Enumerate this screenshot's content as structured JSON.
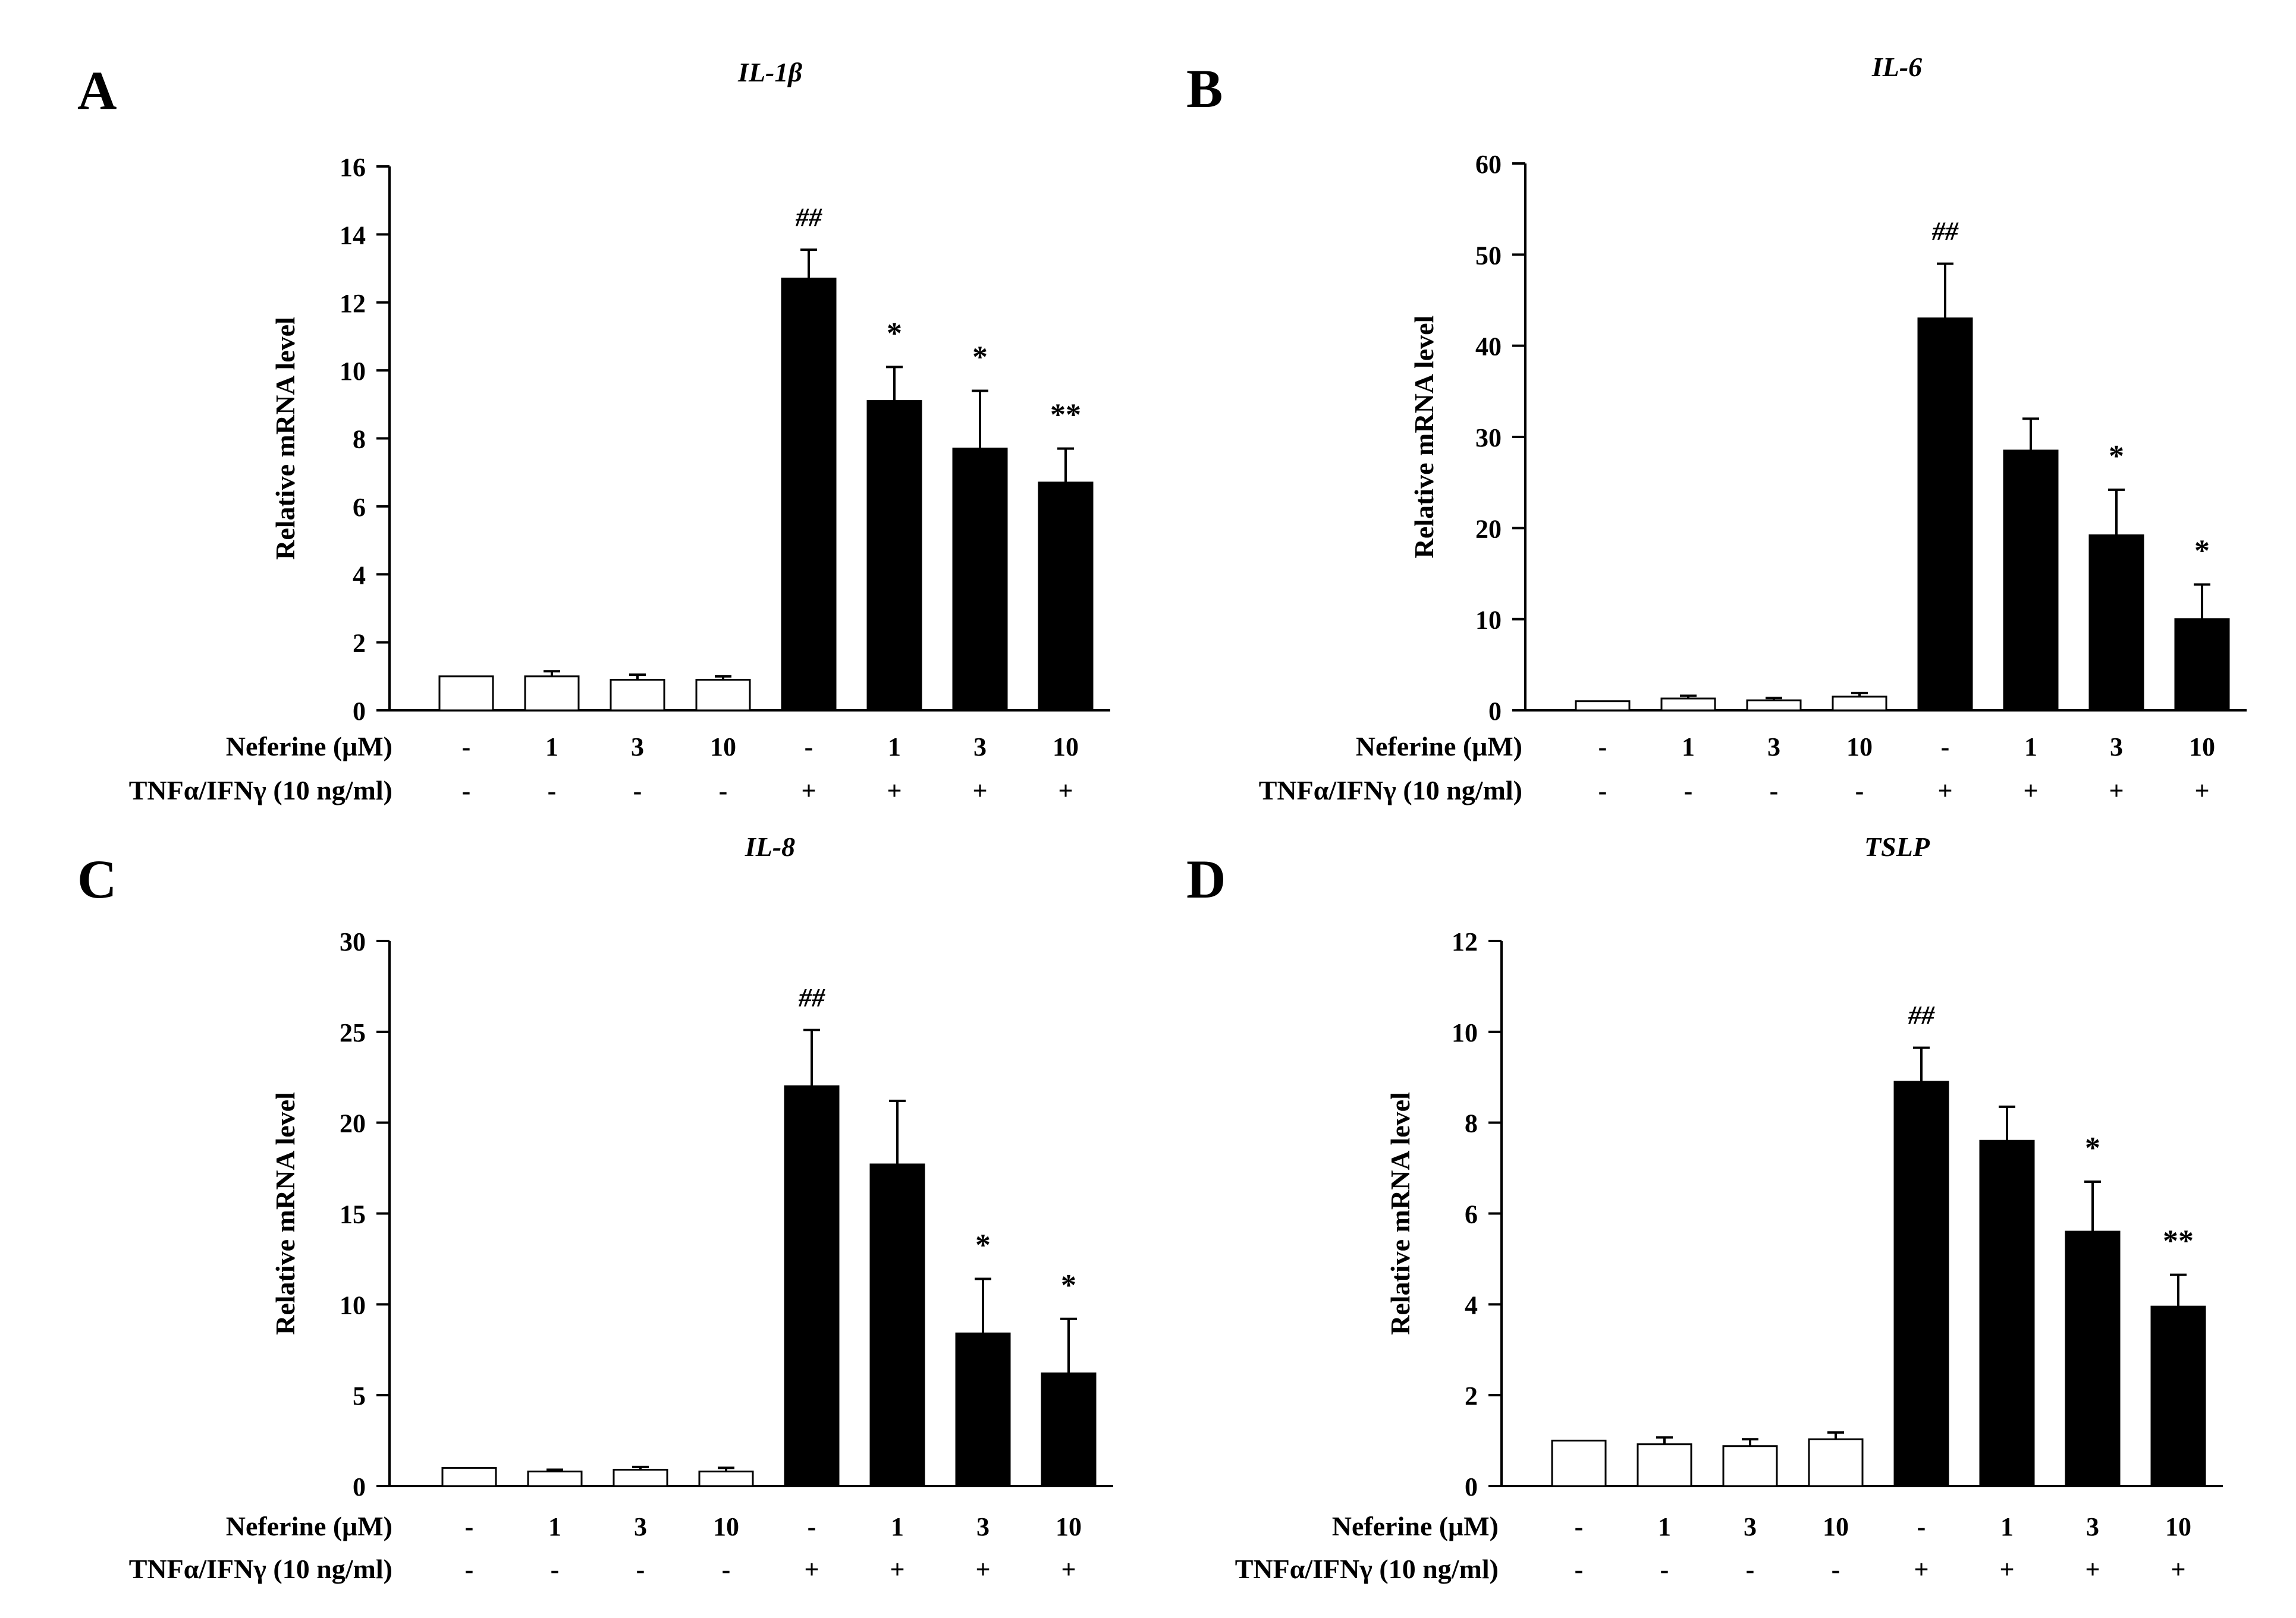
{
  "figure": {
    "x_rows": {
      "neferine_label": "Neferine (μM)",
      "neferine_values": [
        "-",
        "1",
        "3",
        "10",
        "-",
        "1",
        "3",
        "10"
      ],
      "tnf_label": "TNFα/IFNγ (10 ng/ml)",
      "tnf_values": [
        "-",
        "-",
        "-",
        "-",
        "+",
        "+",
        "+",
        "+"
      ]
    },
    "colors": {
      "control_bar": "#ffffff",
      "treated_bar": "#000000",
      "axis": "#000000"
    }
  },
  "chart_data": [
    {
      "panel": "A",
      "type": "bar",
      "title": "IL-1β",
      "ylabel": "Relative mRNA level",
      "ylim": [
        0,
        16
      ],
      "yticks": [
        0,
        2,
        4,
        6,
        8,
        10,
        12,
        14,
        16
      ],
      "values": [
        1.0,
        1.0,
        0.9,
        0.9,
        12.7,
        9.1,
        7.7,
        6.7
      ],
      "errors": [
        0.0,
        0.15,
        0.15,
        0.1,
        0.85,
        1.0,
        1.7,
        1.0
      ],
      "annotations": [
        "",
        "",
        "",
        "",
        "##",
        "*",
        "*",
        "**"
      ]
    },
    {
      "panel": "B",
      "type": "bar",
      "title": "IL-6",
      "ylabel": "Relative mRNA level",
      "ylim": [
        0,
        60
      ],
      "yticks": [
        0,
        10,
        20,
        30,
        40,
        50,
        60
      ],
      "values": [
        1.0,
        1.3,
        1.1,
        1.5,
        43.0,
        28.5,
        19.2,
        10.0
      ],
      "errors": [
        0.0,
        0.3,
        0.25,
        0.4,
        6.0,
        3.5,
        5.0,
        3.8
      ],
      "annotations": [
        "",
        "",
        "",
        "",
        "##",
        "",
        "*",
        "*"
      ]
    },
    {
      "panel": "C",
      "type": "bar",
      "title": "IL-8",
      "ylabel": "Relative mRNA level",
      "ylim": [
        0,
        30
      ],
      "yticks": [
        0,
        5,
        10,
        15,
        20,
        25,
        30
      ],
      "values": [
        1.0,
        0.8,
        0.9,
        0.8,
        22.0,
        17.7,
        8.4,
        6.2
      ],
      "errors": [
        0.0,
        0.1,
        0.15,
        0.2,
        3.1,
        3.5,
        3.0,
        3.0
      ],
      "annotations": [
        "",
        "",
        "",
        "",
        "##",
        "",
        "*",
        "*"
      ]
    },
    {
      "panel": "D",
      "type": "bar",
      "title": "TSLP",
      "ylabel": "Relative mRNA level",
      "ylim": [
        0,
        12
      ],
      "yticks": [
        0,
        2,
        4,
        6,
        8,
        10,
        12
      ],
      "values": [
        1.0,
        0.92,
        0.88,
        1.03,
        8.9,
        7.6,
        5.6,
        3.95
      ],
      "errors": [
        0.0,
        0.15,
        0.15,
        0.15,
        0.75,
        0.75,
        1.1,
        0.7
      ],
      "annotations": [
        "",
        "",
        "",
        "",
        "##",
        "",
        "*",
        "**"
      ]
    }
  ]
}
